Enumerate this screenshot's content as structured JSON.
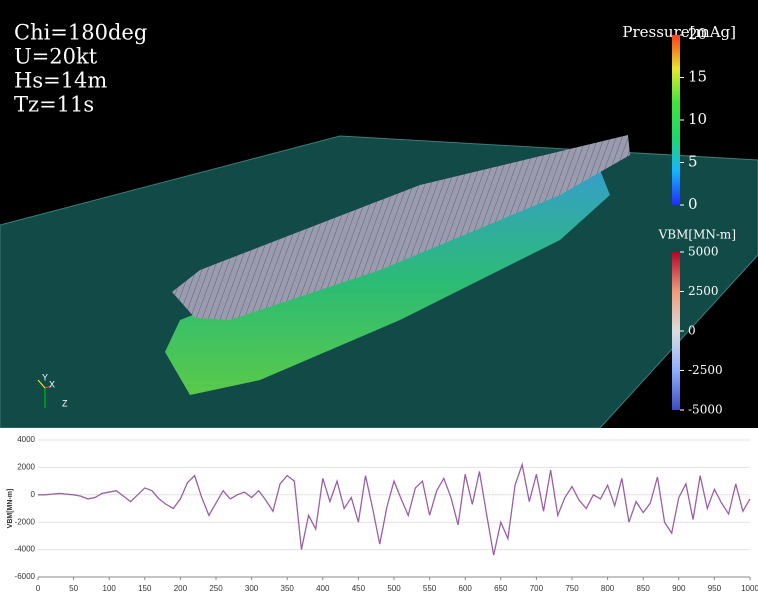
{
  "chart_data": {
    "type": "line",
    "y_label": "VBM[MN-m]",
    "x": [
      0,
      10,
      20,
      30,
      40,
      50,
      60,
      70,
      80,
      90,
      100,
      110,
      120,
      130,
      140,
      150,
      160,
      170,
      180,
      190,
      200,
      210,
      220,
      230,
      240,
      250,
      260,
      270,
      280,
      290,
      300,
      310,
      320,
      330,
      340,
      350,
      360,
      370,
      380,
      390,
      400,
      410,
      420,
      430,
      440,
      450,
      460,
      470,
      480,
      490,
      500,
      510,
      520,
      530,
      540,
      550,
      560,
      570,
      580,
      590,
      600,
      610,
      620,
      630,
      640,
      650,
      660,
      670,
      680,
      690,
      700,
      710,
      720,
      730,
      740,
      750,
      760,
      770,
      780,
      790,
      800,
      810,
      820,
      830,
      840,
      850,
      860,
      870,
      880,
      890,
      900,
      910,
      920,
      930,
      940,
      950,
      960,
      970,
      980,
      990,
      1000
    ],
    "series": [
      {
        "color": "#9b5fa5",
        "values": [
          0,
          0,
          50,
          100,
          50,
          0,
          -100,
          -300,
          -200,
          100,
          200,
          300,
          -100,
          -500,
          0,
          500,
          300,
          -300,
          -700,
          -1000,
          -300,
          900,
          1400,
          -200,
          -1500,
          -600,
          300,
          -300,
          0,
          200,
          -200,
          300,
          -400,
          -1200,
          800,
          1400,
          1000,
          -4000,
          -1500,
          -2500,
          1200,
          -500,
          1000,
          -1000,
          -200,
          -2000,
          1400,
          -1000,
          -3600,
          -900,
          1000,
          -300,
          -1500,
          500,
          1000,
          -1500,
          300,
          1200,
          -200,
          -2200,
          1500,
          -700,
          1700,
          -1400,
          -4400,
          -2000,
          -3200,
          700,
          2200,
          -500,
          1500,
          -1200,
          1800,
          -1500,
          -200,
          600,
          -400,
          -1000,
          0,
          -300,
          700,
          -800,
          1200,
          -2000,
          -500,
          -1300,
          -600,
          1300,
          -2000,
          -2800,
          -200,
          800,
          -1800,
          1400,
          -1000,
          400,
          -600,
          -1400,
          800,
          -1200,
          -300
        ]
      }
    ],
    "xlim": [
      0,
      1000
    ],
    "xticks": [
      0,
      50,
      100,
      150,
      200,
      250,
      300,
      350,
      400,
      450,
      500,
      550,
      600,
      650,
      700,
      750,
      800,
      850,
      900,
      950,
      1000
    ],
    "ylim": [
      -6000,
      4000
    ],
    "yticks": [
      -6000,
      -4000,
      -2000,
      0,
      2000,
      4000
    ],
    "grid": true
  },
  "viewport": {
    "conditions": [
      "Chi=180deg",
      "U=20kt",
      "Hs=14m",
      "Tz=11s"
    ],
    "colorbars": [
      {
        "title": "Pressure[mAg]",
        "lim": [
          0,
          20
        ],
        "ticks": [
          0,
          5,
          10,
          15,
          20
        ],
        "colors": [
          "#1f2cff",
          "#16b6ff",
          "#1fd86a",
          "#3ee33a",
          "#e7e82a",
          "#ff3c1a"
        ]
      },
      {
        "title": "VBM[MN-m]",
        "lim": [
          -5000,
          5000
        ],
        "ticks": [
          -5000,
          -2500,
          0,
          2500,
          5000
        ],
        "colors": [
          "#3a4cc0",
          "#8db0fe",
          "#dddddd",
          "#f49a7b",
          "#b40426"
        ]
      }
    ],
    "axes_triad": [
      "Y",
      "X",
      "Z"
    ]
  }
}
